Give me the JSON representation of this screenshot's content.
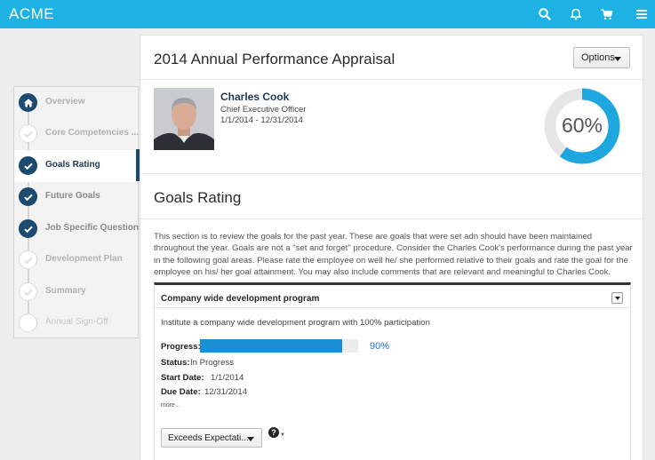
{
  "app": {
    "brand": "ACME"
  },
  "topbar": {
    "icons": [
      "search-icon",
      "bell-icon",
      "cart-icon",
      "menu-icon"
    ],
    "color": "#1eb2e4"
  },
  "steps": [
    {
      "label": "Overview",
      "state": "done-light",
      "icon": "home-icon"
    },
    {
      "label": "Core Competencies ...",
      "state": "done-light",
      "icon": "check-icon"
    },
    {
      "label": "Goals Rating",
      "state": "active",
      "icon": "check-icon"
    },
    {
      "label": "Future Goals",
      "state": "done",
      "icon": "check-icon"
    },
    {
      "label": "Job Specific Questions",
      "state": "done",
      "icon": "check-icon"
    },
    {
      "label": "Development Plan",
      "state": "pending",
      "icon": "check-icon"
    },
    {
      "label": "Summary",
      "state": "pending",
      "icon": "check-icon"
    },
    {
      "label": "Annual Sign-Off",
      "state": "empty",
      "icon": ""
    }
  ],
  "header": {
    "title": "2014 Annual Performance Appraisal",
    "options_label": "Options"
  },
  "employee": {
    "name": "Charles Cook",
    "title": "Chief Executive Officer",
    "dates": "1/1/2014 - 12/31/2014"
  },
  "completion": {
    "percent": 60,
    "label": "60%",
    "color": "#1ea7de"
  },
  "section": {
    "title": "Goals Rating",
    "description": "This section is to review the goals for the past year. These are goals that were set adn should have been maintained throughout the year. Goals are not a \"set and forget\" procedure. Consider the Charles Cook's performance during the past year in the following goal areas. Please rate the employee on well he/ she performed relative to their goals and rate the goal for the employee on his/ her goal attainment. You may also include comments that are relevant and meaningful to Charles Cook."
  },
  "goal": {
    "name": "Company wide development program",
    "description": "Institute a company wide development program with 100% participation",
    "progress_label": "Progress:",
    "progress_value": 90,
    "progress_text": "90%",
    "status_label": "Status:",
    "status": "In Progress",
    "start_label": "Start Date:",
    "start_date": "1/1/2014",
    "due_label": "Due Date:",
    "due_date": "12/31/2014",
    "more_label": "more...",
    "rating": "Exceeds Expectati...",
    "help": "?"
  }
}
